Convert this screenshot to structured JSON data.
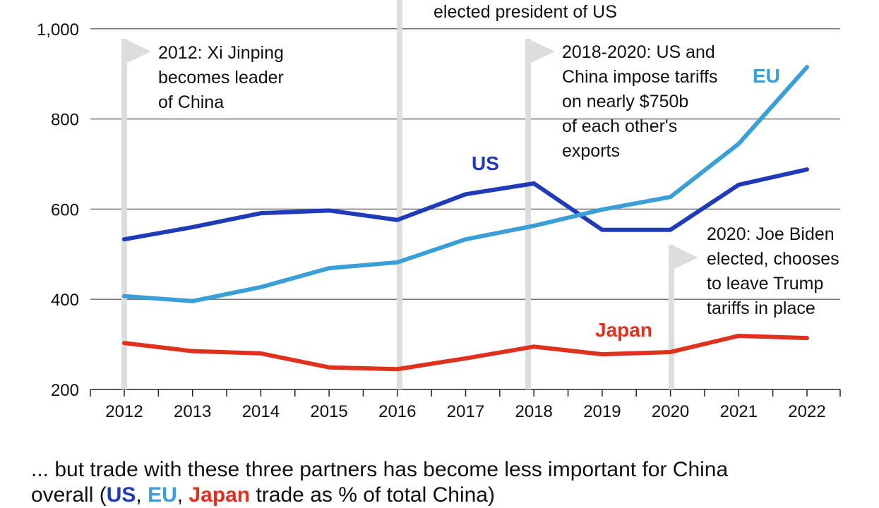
{
  "chart_data": {
    "type": "line",
    "x": [
      2012,
      2013,
      2014,
      2015,
      2016,
      2017,
      2018,
      2019,
      2020,
      2021,
      2022
    ],
    "ylim": [
      200,
      1000
    ],
    "yticks": [
      200,
      400,
      600,
      800,
      1000
    ],
    "ytick_labels": [
      "200",
      "400",
      "600",
      "800",
      "1,000"
    ],
    "grid": "horizontal",
    "series": [
      {
        "name": "US",
        "color": "#1f3bb8",
        "values": [
          533,
          560,
          591,
          597,
          576,
          633,
          657,
          554,
          554,
          654,
          688
        ]
      },
      {
        "name": "EU",
        "color": "#3a9fd6",
        "values": [
          407,
          396,
          427,
          469,
          482,
          533,
          563,
          599,
          627,
          745,
          915
        ]
      },
      {
        "name": "Japan",
        "color": "#e0301e",
        "values": [
          303,
          285,
          280,
          249,
          245,
          269,
          295,
          278,
          283,
          319,
          314
        ]
      }
    ],
    "annotations": [
      {
        "year": 2012,
        "lines": [
          "2012: Xi Jinping",
          "becomes leader",
          "of China"
        ]
      },
      {
        "year": 2016,
        "lines": [
          "elected president of US"
        ]
      },
      {
        "year": 2018,
        "lines": [
          "2018-2020: US and",
          "China impose tariffs",
          "on nearly $750b",
          "of each other's",
          "exports"
        ]
      },
      {
        "year": 2020,
        "lines": [
          "2020: Joe Biden",
          "elected, chooses",
          "to leave Trump",
          "tariffs in place"
        ]
      }
    ]
  },
  "footer": {
    "line1": "... but trade with these three partners has become less important for China",
    "line2_prefix": "overall (",
    "us": "US",
    "eu": "EU",
    "japan": "Japan",
    "line2_suffix": " trade as % of total China)"
  }
}
